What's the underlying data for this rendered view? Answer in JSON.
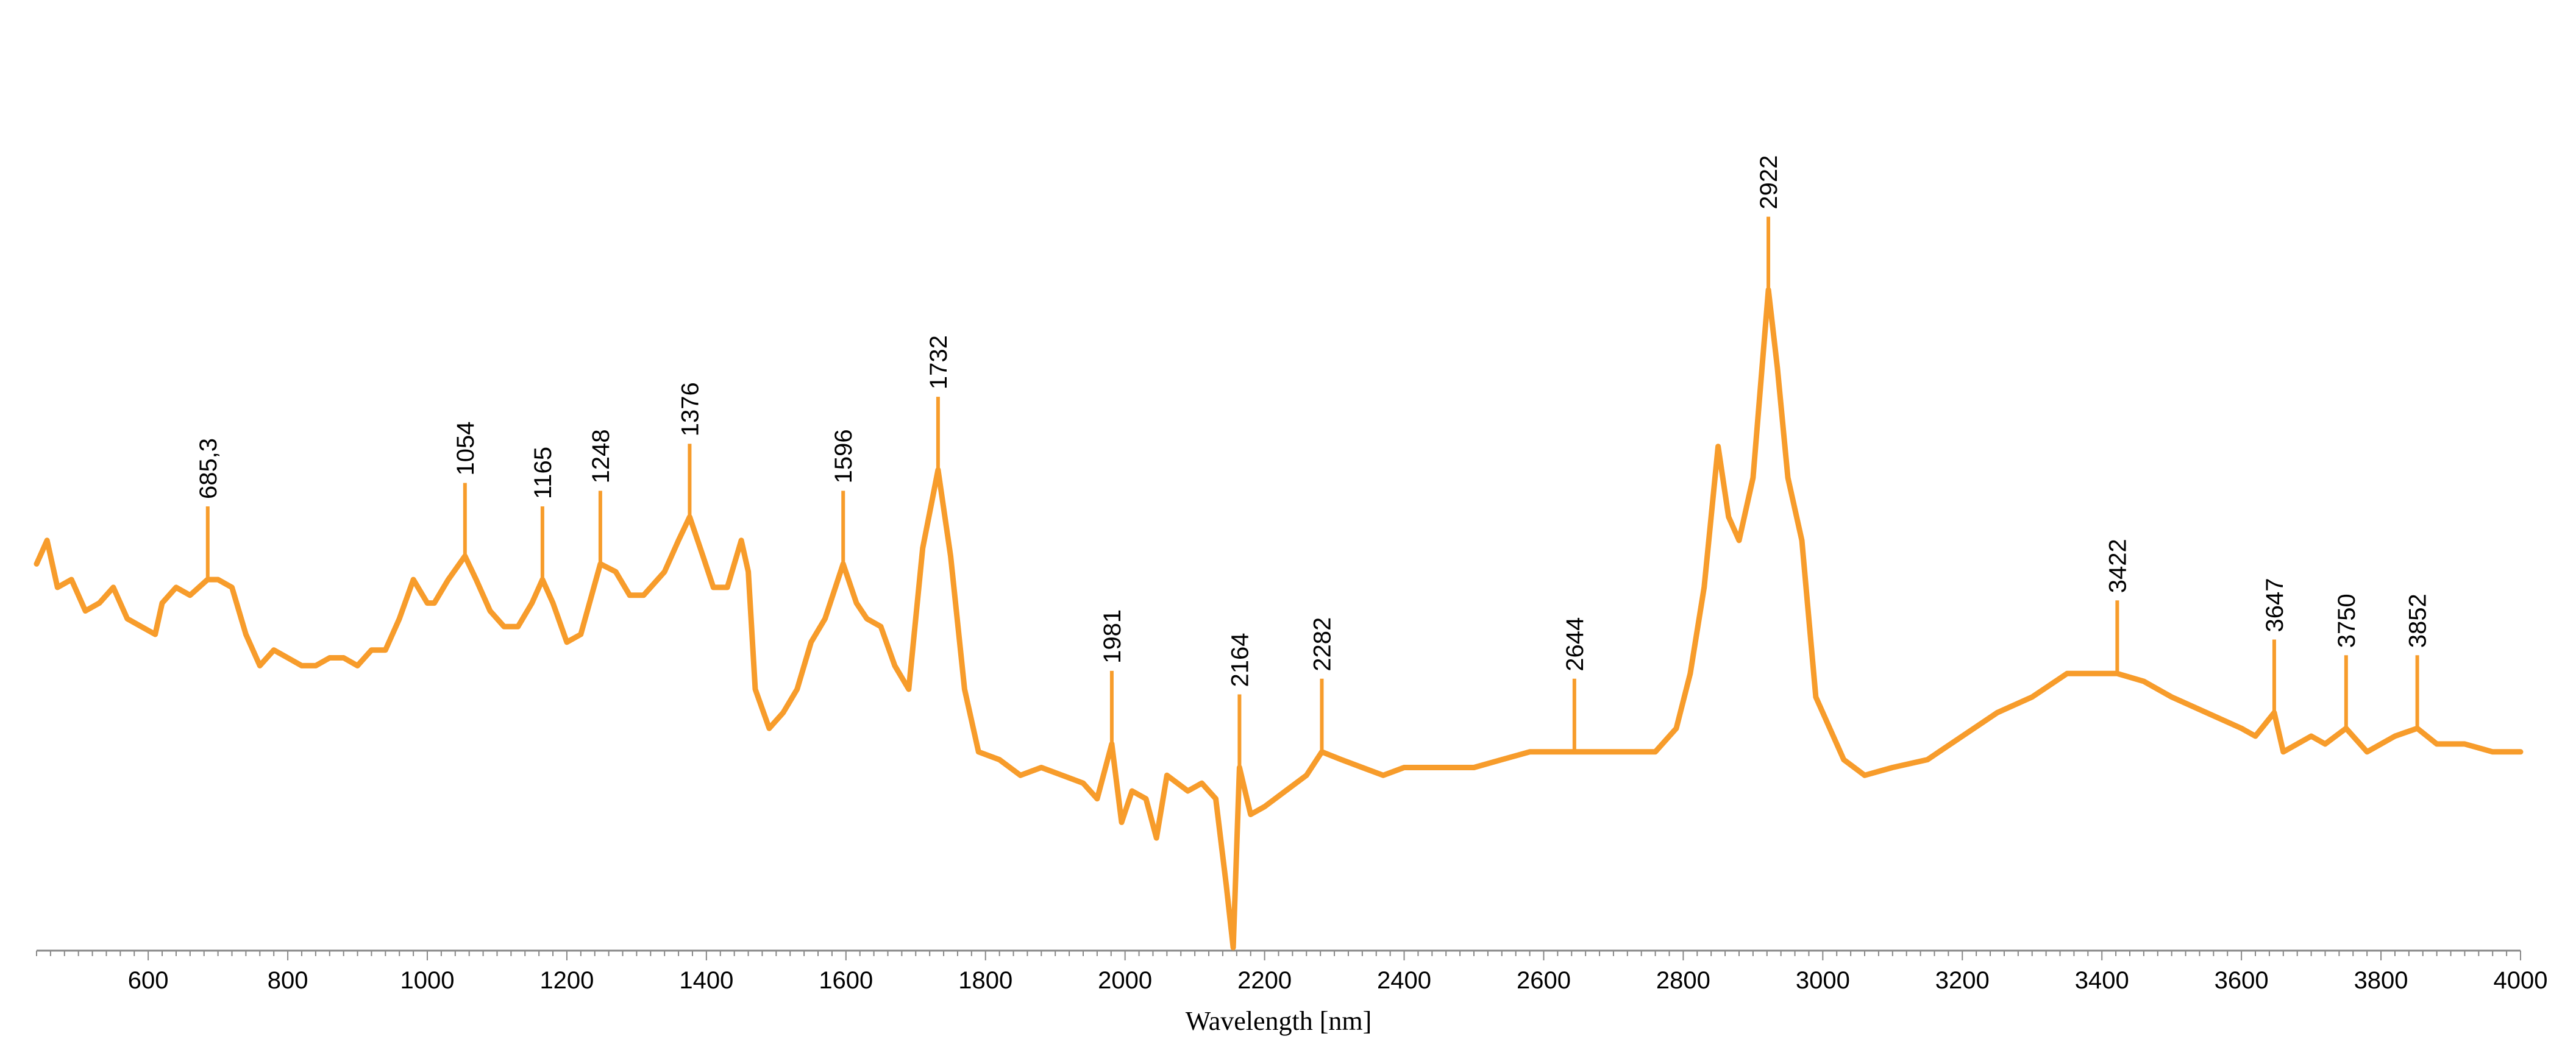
{
  "chart_data": {
    "type": "line",
    "title": "",
    "xlabel": "Wavelength [nm]",
    "ylabel": "",
    "xlim": [
      440,
      4000
    ],
    "ylim": [
      0,
      1
    ],
    "y_axis_shown": false,
    "grid": false,
    "color": "#F79C2B",
    "x_ticks": [
      600,
      800,
      1000,
      1200,
      1400,
      1600,
      1800,
      2000,
      2200,
      2400,
      2600,
      2800,
      3000,
      3200,
      3400,
      3600,
      3800,
      4000
    ],
    "series": [
      {
        "points": [
          [
            440,
            0.49
          ],
          [
            455,
            0.52
          ],
          [
            470,
            0.46
          ],
          [
            490,
            0.47
          ],
          [
            510,
            0.43
          ],
          [
            530,
            0.44
          ],
          [
            550,
            0.46
          ],
          [
            570,
            0.42
          ],
          [
            590,
            0.41
          ],
          [
            610,
            0.4
          ],
          [
            620,
            0.44
          ],
          [
            640,
            0.46
          ],
          [
            660,
            0.45
          ],
          [
            685,
            0.47
          ],
          [
            700,
            0.47
          ],
          [
            720,
            0.46
          ],
          [
            740,
            0.4
          ],
          [
            760,
            0.36
          ],
          [
            780,
            0.38
          ],
          [
            800,
            0.37
          ],
          [
            820,
            0.36
          ],
          [
            840,
            0.36
          ],
          [
            860,
            0.37
          ],
          [
            880,
            0.37
          ],
          [
            900,
            0.36
          ],
          [
            920,
            0.38
          ],
          [
            940,
            0.38
          ],
          [
            960,
            0.42
          ],
          [
            980,
            0.47
          ],
          [
            1000,
            0.44
          ],
          [
            1010,
            0.44
          ],
          [
            1030,
            0.47
          ],
          [
            1054,
            0.5
          ],
          [
            1070,
            0.47
          ],
          [
            1090,
            0.43
          ],
          [
            1110,
            0.41
          ],
          [
            1130,
            0.41
          ],
          [
            1150,
            0.44
          ],
          [
            1165,
            0.47
          ],
          [
            1180,
            0.44
          ],
          [
            1200,
            0.39
          ],
          [
            1220,
            0.4
          ],
          [
            1248,
            0.49
          ],
          [
            1270,
            0.48
          ],
          [
            1290,
            0.45
          ],
          [
            1310,
            0.45
          ],
          [
            1340,
            0.48
          ],
          [
            1360,
            0.52
          ],
          [
            1376,
            0.55
          ],
          [
            1395,
            0.5
          ],
          [
            1410,
            0.46
          ],
          [
            1430,
            0.46
          ],
          [
            1450,
            0.52
          ],
          [
            1460,
            0.48
          ],
          [
            1470,
            0.33
          ],
          [
            1490,
            0.28
          ],
          [
            1510,
            0.3
          ],
          [
            1530,
            0.33
          ],
          [
            1550,
            0.39
          ],
          [
            1570,
            0.42
          ],
          [
            1596,
            0.49
          ],
          [
            1615,
            0.44
          ],
          [
            1630,
            0.42
          ],
          [
            1650,
            0.41
          ],
          [
            1670,
            0.36
          ],
          [
            1690,
            0.33
          ],
          [
            1710,
            0.51
          ],
          [
            1732,
            0.61
          ],
          [
            1750,
            0.5
          ],
          [
            1770,
            0.33
          ],
          [
            1790,
            0.25
          ],
          [
            1820,
            0.24
          ],
          [
            1850,
            0.22
          ],
          [
            1880,
            0.23
          ],
          [
            1910,
            0.22
          ],
          [
            1940,
            0.21
          ],
          [
            1960,
            0.19
          ],
          [
            1981,
            0.26
          ],
          [
            1995,
            0.16
          ],
          [
            2010,
            0.2
          ],
          [
            2030,
            0.19
          ],
          [
            2045,
            0.14
          ],
          [
            2060,
            0.22
          ],
          [
            2090,
            0.2
          ],
          [
            2110,
            0.21
          ],
          [
            2130,
            0.19
          ],
          [
            2145,
            0.08
          ],
          [
            2155,
            0.0
          ],
          [
            2164,
            0.23
          ],
          [
            2180,
            0.17
          ],
          [
            2200,
            0.18
          ],
          [
            2230,
            0.2
          ],
          [
            2260,
            0.22
          ],
          [
            2282,
            0.25
          ],
          [
            2310,
            0.24
          ],
          [
            2340,
            0.23
          ],
          [
            2370,
            0.22
          ],
          [
            2400,
            0.23
          ],
          [
            2430,
            0.23
          ],
          [
            2460,
            0.23
          ],
          [
            2500,
            0.23
          ],
          [
            2540,
            0.24
          ],
          [
            2580,
            0.25
          ],
          [
            2620,
            0.25
          ],
          [
            2644,
            0.25
          ],
          [
            2680,
            0.25
          ],
          [
            2720,
            0.25
          ],
          [
            2760,
            0.25
          ],
          [
            2790,
            0.28
          ],
          [
            2810,
            0.35
          ],
          [
            2830,
            0.46
          ],
          [
            2850,
            0.64
          ],
          [
            2865,
            0.55
          ],
          [
            2880,
            0.52
          ],
          [
            2900,
            0.6
          ],
          [
            2922,
            0.84
          ],
          [
            2935,
            0.74
          ],
          [
            2950,
            0.6
          ],
          [
            2970,
            0.52
          ],
          [
            2990,
            0.32
          ],
          [
            3010,
            0.28
          ],
          [
            3030,
            0.24
          ],
          [
            3060,
            0.22
          ],
          [
            3100,
            0.23
          ],
          [
            3150,
            0.24
          ],
          [
            3200,
            0.27
          ],
          [
            3250,
            0.3
          ],
          [
            3300,
            0.32
          ],
          [
            3350,
            0.35
          ],
          [
            3400,
            0.35
          ],
          [
            3422,
            0.35
          ],
          [
            3460,
            0.34
          ],
          [
            3500,
            0.32
          ],
          [
            3550,
            0.3
          ],
          [
            3600,
            0.28
          ],
          [
            3620,
            0.27
          ],
          [
            3647,
            0.3
          ],
          [
            3660,
            0.25
          ],
          [
            3700,
            0.27
          ],
          [
            3720,
            0.26
          ],
          [
            3750,
            0.28
          ],
          [
            3780,
            0.25
          ],
          [
            3820,
            0.27
          ],
          [
            3852,
            0.28
          ],
          [
            3880,
            0.26
          ],
          [
            3920,
            0.26
          ],
          [
            3960,
            0.25
          ],
          [
            4000,
            0.25
          ]
        ]
      }
    ],
    "peak_labels": [
      {
        "x": 685.3,
        "label": "685,3"
      },
      {
        "x": 1054,
        "label": "1054"
      },
      {
        "x": 1165,
        "label": "1165"
      },
      {
        "x": 1248,
        "label": "1248"
      },
      {
        "x": 1376,
        "label": "1376"
      },
      {
        "x": 1596,
        "label": "1596"
      },
      {
        "x": 1732,
        "label": "1732"
      },
      {
        "x": 1981,
        "label": "1981"
      },
      {
        "x": 2164,
        "label": "2164"
      },
      {
        "x": 2282,
        "label": "2282"
      },
      {
        "x": 2644,
        "label": "2644"
      },
      {
        "x": 2922,
        "label": "2922"
      },
      {
        "x": 3422,
        "label": "3422"
      },
      {
        "x": 3647,
        "label": "3647"
      },
      {
        "x": 3750,
        "label": "3750"
      },
      {
        "x": 3852,
        "label": "3852"
      }
    ]
  }
}
